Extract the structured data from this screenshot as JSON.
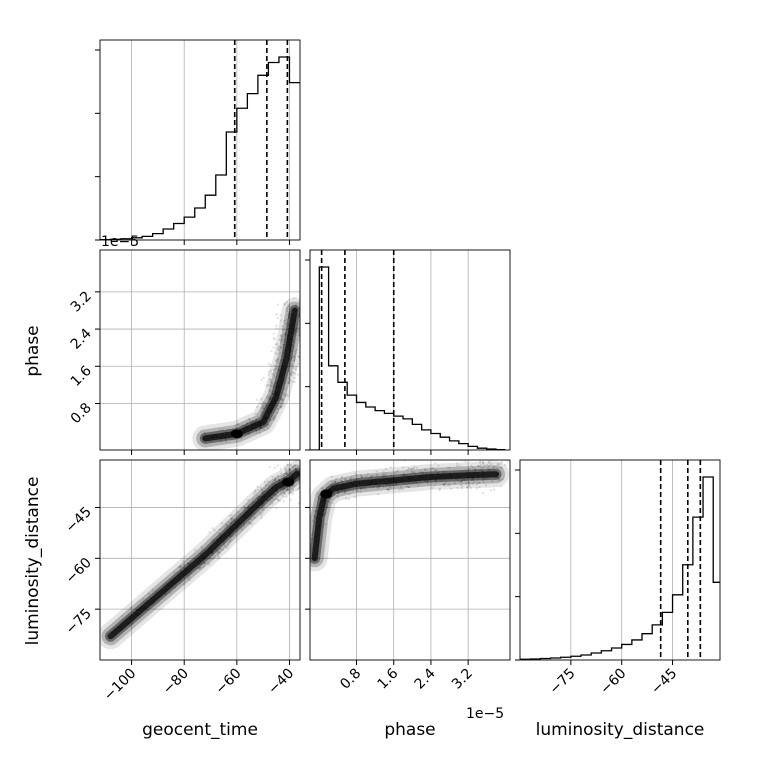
{
  "chart_data": {
    "type": "corner",
    "parameters": [
      "geocent_time",
      "phase",
      "luminosity_distance"
    ],
    "offset_text": "1e−5",
    "colors": {
      "line": "#000000",
      "grid": "#b0b0b0",
      "fill": "#000000"
    },
    "grid": true,
    "axes": {
      "geocent_time": {
        "range": [
          -112,
          -36
        ],
        "ticks": [
          -100,
          -80,
          -60,
          -40
        ],
        "tick_labels": [
          "−100",
          "−80",
          "−60",
          "−40"
        ],
        "label": "geocent_time"
      },
      "phase": {
        "range": [
          -0.2,
          4.1
        ],
        "ticks": [
          0.8,
          1.6,
          2.4,
          3.2
        ],
        "tick_labels": [
          "0.8",
          "1.6",
          "2.4",
          "3.2"
        ],
        "label": "phase",
        "multiplier": "1e-5"
      },
      "luminosity_distance": {
        "range": [
          -90,
          -31
        ],
        "ticks": [
          -75,
          -60,
          -45
        ],
        "tick_labels": [
          "−75",
          "−60",
          "−45"
        ],
        "label": "luminosity_distance"
      }
    },
    "histograms": [
      {
        "parameter": "geocent_time",
        "bins": [
          -112,
          -108,
          -104,
          -100,
          -96,
          -92,
          -88,
          -84,
          -80,
          -76,
          -72,
          -68,
          -64,
          -60,
          -56,
          -52,
          -48,
          -44,
          -40,
          -36
        ],
        "counts": [
          0.002,
          0.004,
          0.007,
          0.012,
          0.02,
          0.035,
          0.06,
          0.09,
          0.125,
          0.175,
          0.245,
          0.355,
          0.59,
          0.72,
          0.8,
          0.9,
          0.97,
          1.0,
          0.86
        ],
        "quantiles": [
          -60.8,
          -48.6,
          -40.8
        ]
      },
      {
        "parameter": "phase",
        "bins": [
          -0.2,
          0.0,
          0.2,
          0.4,
          0.6,
          0.8,
          1.0,
          1.2,
          1.4,
          1.6,
          1.8,
          2.0,
          2.2,
          2.4,
          2.6,
          2.8,
          3.0,
          3.2,
          3.4,
          3.6,
          3.8,
          4.0
        ],
        "counts": [
          0.0,
          1.0,
          0.46,
          0.37,
          0.3,
          0.26,
          0.235,
          0.215,
          0.2,
          0.185,
          0.17,
          0.14,
          0.11,
          0.09,
          0.07,
          0.05,
          0.035,
          0.02,
          0.01,
          0.005,
          0.002
        ],
        "quantiles": [
          0.05,
          0.55,
          1.6
        ]
      },
      {
        "parameter": "luminosity_distance",
        "bins": [
          -90,
          -87,
          -84,
          -81,
          -78,
          -75,
          -72,
          -69,
          -66,
          -63,
          -60,
          -57,
          -54,
          -51,
          -48,
          -45,
          -42,
          -39,
          -36,
          -33,
          -30
        ],
        "counts": [
          0.003,
          0.004,
          0.006,
          0.008,
          0.011,
          0.015,
          0.02,
          0.028,
          0.037,
          0.048,
          0.062,
          0.08,
          0.105,
          0.14,
          0.19,
          0.26,
          0.38,
          0.57,
          0.73,
          0.31
        ],
        "quantiles": [
          -48.5,
          -40.5,
          -36.8
        ]
      }
    ],
    "contour_panels": [
      {
        "x": "geocent_time",
        "y": "phase",
        "ridge": {
          "x": [
            -72,
            -60,
            -50,
            -45,
            -41,
            -38
          ],
          "y": [
            0.05,
            0.15,
            0.4,
            0.95,
            1.8,
            2.8
          ]
        },
        "peak": [
          -60,
          0.15
        ]
      },
      {
        "x": "geocent_time",
        "y": "luminosity_distance",
        "ridge": {
          "x": [
            -108,
            -96,
            -84,
            -72,
            -60,
            -52,
            -45,
            -40,
            -37
          ],
          "y": [
            -83,
            -75,
            -67,
            -59,
            -50,
            -44,
            -39,
            -37,
            -35
          ]
        },
        "peak": [
          -40.5,
          -37.5
        ]
      },
      {
        "x": "phase",
        "y": "luminosity_distance",
        "ridge": {
          "x": [
            -0.1,
            0.0,
            0.1,
            0.3,
            0.8,
            1.6,
            2.4,
            3.2,
            3.8
          ],
          "y": [
            -60,
            -48,
            -42,
            -39.5,
            -38,
            -37,
            -36,
            -35.5,
            -35.2
          ]
        },
        "peak": [
          0.15,
          -41
        ]
      }
    ]
  }
}
